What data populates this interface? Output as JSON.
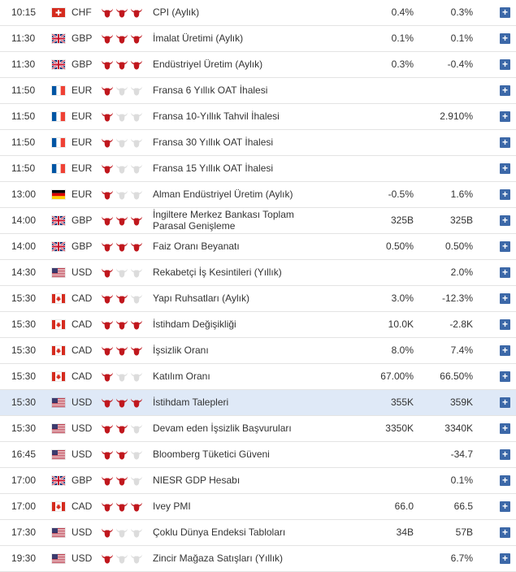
{
  "rows": [
    {
      "time": "10:15",
      "flag": "ch",
      "currency": "CHF",
      "importance": 3,
      "event": "CPI (Aylık)",
      "actual": "0.4%",
      "forecast": "0.3%"
    },
    {
      "time": "11:30",
      "flag": "gb",
      "currency": "GBP",
      "importance": 3,
      "event": "İmalat Üretimi (Aylık)",
      "actual": "0.1%",
      "forecast": "0.1%"
    },
    {
      "time": "11:30",
      "flag": "gb",
      "currency": "GBP",
      "importance": 3,
      "event": "Endüstriyel Üretim (Aylık)",
      "actual": "0.3%",
      "forecast": "-0.4%"
    },
    {
      "time": "11:50",
      "flag": "fr",
      "currency": "EUR",
      "importance": 1,
      "event": "Fransa 6 Yıllık OAT İhalesi",
      "actual": "",
      "forecast": ""
    },
    {
      "time": "11:50",
      "flag": "fr",
      "currency": "EUR",
      "importance": 1,
      "event": "Fransa 10-Yıllık Tahvil İhalesi",
      "actual": "",
      "forecast": "2.910%"
    },
    {
      "time": "11:50",
      "flag": "fr",
      "currency": "EUR",
      "importance": 1,
      "event": "Fransa 30 Yıllık OAT İhalesi",
      "actual": "",
      "forecast": ""
    },
    {
      "time": "11:50",
      "flag": "fr",
      "currency": "EUR",
      "importance": 1,
      "event": "Fransa 15 Yıllık OAT İhalesi",
      "actual": "",
      "forecast": ""
    },
    {
      "time": "13:00",
      "flag": "de",
      "currency": "EUR",
      "importance": 1,
      "event": "Alman Endüstriyel Üretim (Aylık)",
      "actual": "-0.5%",
      "forecast": "1.6%"
    },
    {
      "time": "14:00",
      "flag": "gb",
      "currency": "GBP",
      "importance": 3,
      "event": "İngiltere Merkez Bankası Toplam Parasal Genişleme",
      "actual": "325B",
      "forecast": "325B",
      "twoLine": true
    },
    {
      "time": "14:00",
      "flag": "gb",
      "currency": "GBP",
      "importance": 3,
      "event": "Faiz Oranı Beyanatı",
      "actual": "0.50%",
      "forecast": "0.50%"
    },
    {
      "time": "14:30",
      "flag": "us",
      "currency": "USD",
      "importance": 1,
      "event": "Rekabetçi İş Kesintileri (Yıllık)",
      "actual": "",
      "forecast": "2.0%"
    },
    {
      "time": "15:30",
      "flag": "ca",
      "currency": "CAD",
      "importance": 2,
      "event": "Yapı Ruhsatları (Aylık)",
      "actual": "3.0%",
      "forecast": "-12.3%"
    },
    {
      "time": "15:30",
      "flag": "ca",
      "currency": "CAD",
      "importance": 3,
      "event": "İstihdam Değişikliği",
      "actual": "10.0K",
      "forecast": "-2.8K"
    },
    {
      "time": "15:30",
      "flag": "ca",
      "currency": "CAD",
      "importance": 3,
      "event": "İşsizlik Oranı",
      "actual": "8.0%",
      "forecast": "7.4%"
    },
    {
      "time": "15:30",
      "flag": "ca",
      "currency": "CAD",
      "importance": 1,
      "event": "Katılım Oranı",
      "actual": "67.00%",
      "forecast": "66.50%"
    },
    {
      "time": "15:30",
      "flag": "us",
      "currency": "USD",
      "importance": 3,
      "event": "İstihdam Talepleri",
      "actual": "355K",
      "forecast": "359K",
      "highlight": true
    },
    {
      "time": "15:30",
      "flag": "us",
      "currency": "USD",
      "importance": 2,
      "event": "Devam eden İşsizlik Başvuruları",
      "actual": "3350K",
      "forecast": "3340K"
    },
    {
      "time": "16:45",
      "flag": "us",
      "currency": "USD",
      "importance": 2,
      "event": "Bloomberg Tüketici Güveni",
      "actual": "",
      "forecast": "-34.7"
    },
    {
      "time": "17:00",
      "flag": "gb",
      "currency": "GBP",
      "importance": 2,
      "event": "NIESR GDP Hesabı",
      "actual": "",
      "forecast": "0.1%"
    },
    {
      "time": "17:00",
      "flag": "ca",
      "currency": "CAD",
      "importance": 3,
      "event": "Ivey PMI",
      "actual": "66.0",
      "forecast": "66.5"
    },
    {
      "time": "17:30",
      "flag": "us",
      "currency": "USD",
      "importance": 1,
      "event": "Çoklu Dünya Endeksi Tabloları",
      "actual": "34B",
      "forecast": "57B"
    },
    {
      "time": "19:30",
      "flag": "us",
      "currency": "USD",
      "importance": 1,
      "event": "Zincir Mağaza Satışları (Yıllık)",
      "actual": "",
      "forecast": "6.7%"
    }
  ],
  "expand_label": "+",
  "colors": {
    "bull_active": "#c0171d",
    "bull_inactive": "#dcdcdc",
    "highlight": "#dfe9f7",
    "plus_bg": "#3c68a8"
  }
}
